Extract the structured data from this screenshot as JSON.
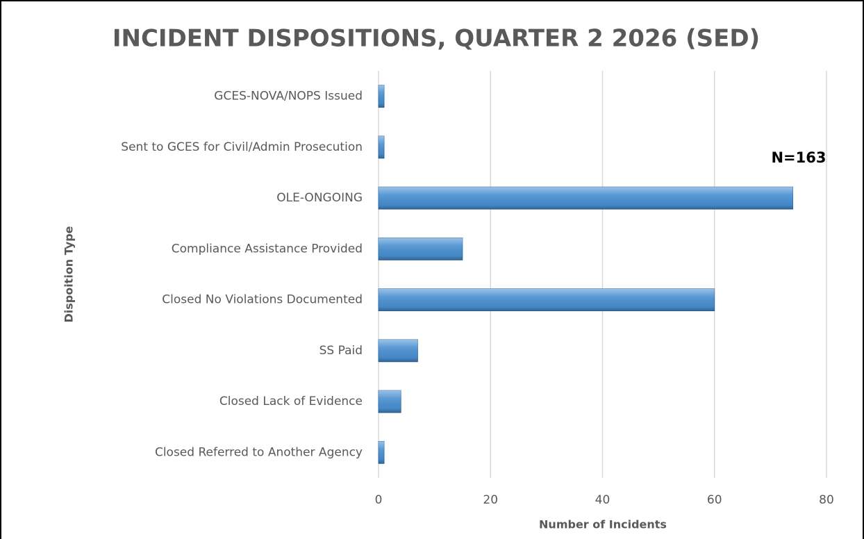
{
  "chart_data": {
    "type": "bar",
    "orientation": "horizontal",
    "title": "INCIDENT DISPOSITIONS, QUARTER 2 2026 (SED)",
    "annotation": "N=163",
    "xlabel": "Number of Incidents",
    "ylabel": "Dispoition Type",
    "categories": [
      "GCES-NOVA/NOPS Issued",
      "Sent to GCES for Civil/Admin Prosecution",
      "OLE-ONGOING",
      "Compliance Assistance Provided",
      "Closed No Violations Documented",
      "SS Paid",
      "Closed Lack of Evidence",
      "Closed Referred to Another Agency"
    ],
    "values": [
      1,
      1,
      74,
      15,
      60,
      7,
      4,
      1
    ],
    "color": "#4a90d2",
    "xlim": [
      0,
      80
    ],
    "xticks": [
      0,
      20,
      40,
      60,
      80
    ],
    "grid": true
  }
}
